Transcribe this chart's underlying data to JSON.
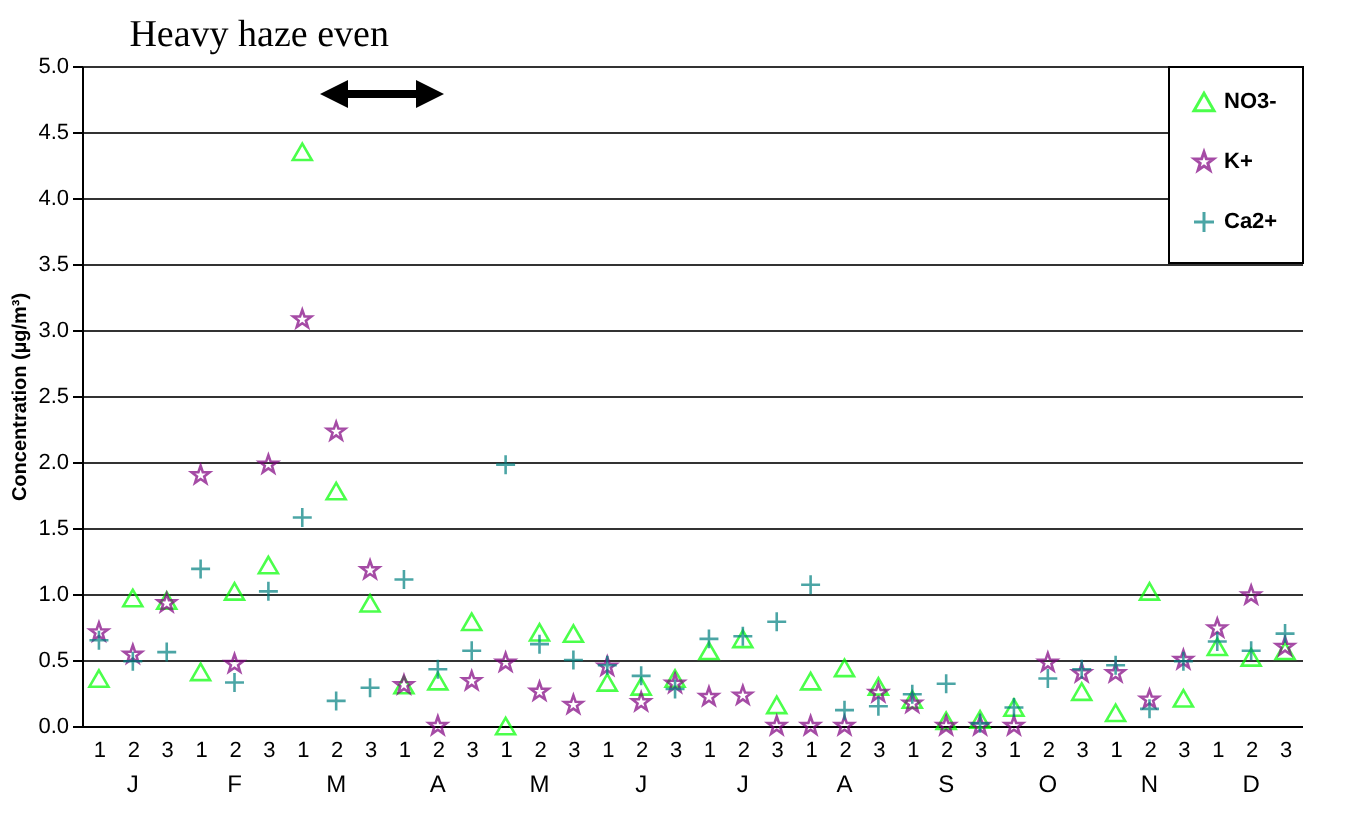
{
  "chart_data": {
    "type": "scatter",
    "title": "Heavy haze even",
    "ylabel": "Concentration (µg/m³)",
    "categories": [
      "1",
      "2",
      "3",
      "1",
      "2",
      "3",
      "1",
      "2",
      "3",
      "1",
      "2",
      "3",
      "1",
      "2",
      "3",
      "1",
      "2",
      "3",
      "1",
      "2",
      "3",
      "1",
      "2",
      "3",
      "1",
      "2",
      "3",
      "1",
      "2",
      "3",
      "1",
      "2",
      "3",
      "1",
      "2",
      "3"
    ],
    "annotations": [
      "J",
      "F",
      "M",
      "A",
      "M",
      "J",
      "J",
      "A",
      "S",
      "O",
      "N",
      "D"
    ],
    "series": [
      {
        "name": "NO3-",
        "color": "#00ff00",
        "marker": "triangle",
        "values": [
          0.36,
          0.97,
          0.95,
          0.41,
          1.02,
          1.22,
          4.35,
          1.78,
          0.93,
          0.31,
          0.34,
          0.79,
          0.0,
          0.71,
          0.7,
          0.33,
          0.3,
          0.36,
          0.57,
          0.66,
          0.16,
          0.34,
          0.44,
          0.3,
          0.2,
          0.04,
          0.05,
          0.14,
          null,
          0.26,
          0.1,
          1.02,
          0.21,
          0.6,
          0.52,
          0.57
        ]
      },
      {
        "name": "K+",
        "color": "#800080",
        "marker": "star",
        "values": [
          0.71,
          0.54,
          0.93,
          1.9,
          0.47,
          1.98,
          3.08,
          2.23,
          1.18,
          0.31,
          0.0,
          0.34,
          0.48,
          0.26,
          0.16,
          0.45,
          0.18,
          0.32,
          0.22,
          0.23,
          0.0,
          0.0,
          0.0,
          0.25,
          0.17,
          0.0,
          0.0,
          0.0,
          0.48,
          0.4,
          0.4,
          0.2,
          0.5,
          0.74,
          0.99,
          0.6
        ]
      },
      {
        "name": "Ca2+",
        "color": "#008080",
        "marker": "cross",
        "values": [
          0.65,
          0.49,
          0.56,
          1.19,
          0.33,
          1.02,
          1.58,
          0.19,
          0.29,
          1.11,
          0.43,
          0.57,
          1.98,
          0.62,
          0.5,
          0.46,
          0.38,
          0.28,
          0.66,
          0.68,
          0.79,
          1.07,
          0.12,
          0.15,
          0.24,
          0.32,
          0.02,
          0.14,
          0.36,
          0.43,
          0.46,
          0.13,
          0.49,
          0.64,
          0.57,
          0.7
        ]
      }
    ],
    "ylim": [
      0,
      5
    ],
    "yticks": [
      {
        "value": 0,
        "label": "0.0"
      },
      {
        "value": 0.5,
        "label": "0.5"
      },
      {
        "value": 1,
        "label": "1.0"
      },
      {
        "value": 1.5,
        "label": "1.5"
      },
      {
        "value": 2,
        "label": "2.0"
      },
      {
        "value": 2.5,
        "label": "2.5"
      },
      {
        "value": 3,
        "label": "3.0"
      },
      {
        "value": 3.5,
        "label": "3.5"
      },
      {
        "value": 4,
        "label": "4.0"
      },
      {
        "value": 4.5,
        "label": "4.5"
      },
      {
        "value": 5,
        "label": "5.0"
      }
    ],
    "grid": "y",
    "legend": "top right"
  }
}
